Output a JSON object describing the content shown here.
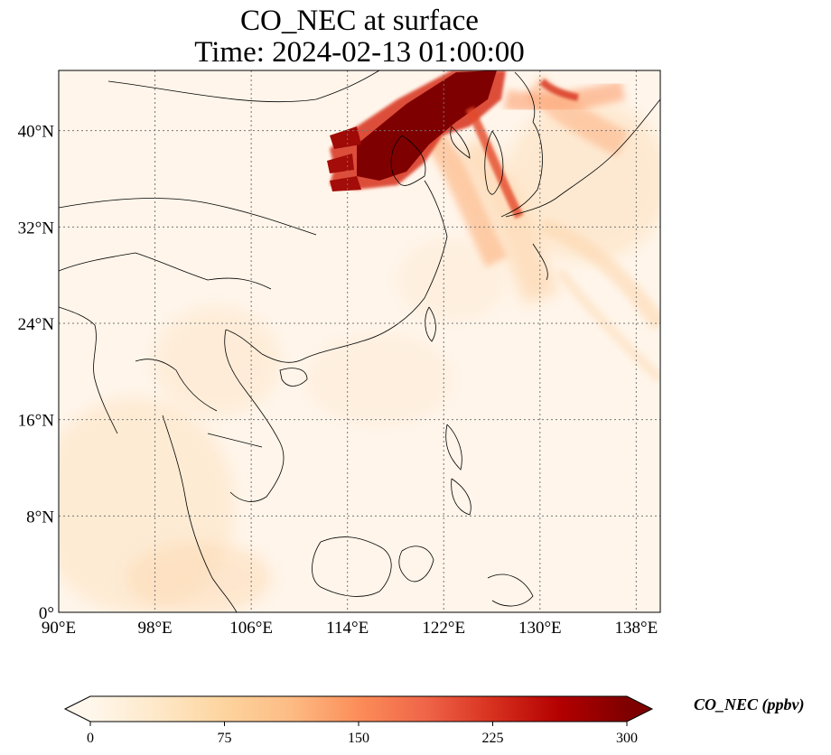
{
  "title": "CO_NEC at surface",
  "subtitle": "Time: 2024-02-13 01:00:00",
  "map": {
    "extent": {
      "lon_min": 90,
      "lon_max": 140,
      "lat_min": 0,
      "lat_max": 45
    },
    "lon_ticks": [
      {
        "value": 90,
        "label": "90°E"
      },
      {
        "value": 98,
        "label": "98°E"
      },
      {
        "value": 106,
        "label": "106°E"
      },
      {
        "value": 114,
        "label": "114°E"
      },
      {
        "value": 122,
        "label": "122°E"
      },
      {
        "value": 130,
        "label": "130°E"
      },
      {
        "value": 138,
        "label": "138°E"
      }
    ],
    "lat_ticks": [
      {
        "value": 0,
        "label": "0°"
      },
      {
        "value": 8,
        "label": "8°N"
      },
      {
        "value": 16,
        "label": "16°N"
      },
      {
        "value": 24,
        "label": "24°N"
      },
      {
        "value": 32,
        "label": "32°N"
      },
      {
        "value": 40,
        "label": "40°N"
      }
    ],
    "gridlines": true,
    "colormap": "OrRd"
  },
  "colorbar": {
    "label": "CO_NEC (ppbv)",
    "min": 0,
    "max": 300,
    "ticks": [
      {
        "value": 0,
        "label": "0"
      },
      {
        "value": 75,
        "label": "75"
      },
      {
        "value": 150,
        "label": "150"
      },
      {
        "value": 225,
        "label": "225"
      },
      {
        "value": 300,
        "label": "300"
      }
    ],
    "extend": "both",
    "stops": [
      "#fff7ec",
      "#fee8c8",
      "#fdd49e",
      "#fdbb84",
      "#fc8d59",
      "#ef6548",
      "#d7301f",
      "#b30000",
      "#7f0000"
    ]
  }
}
